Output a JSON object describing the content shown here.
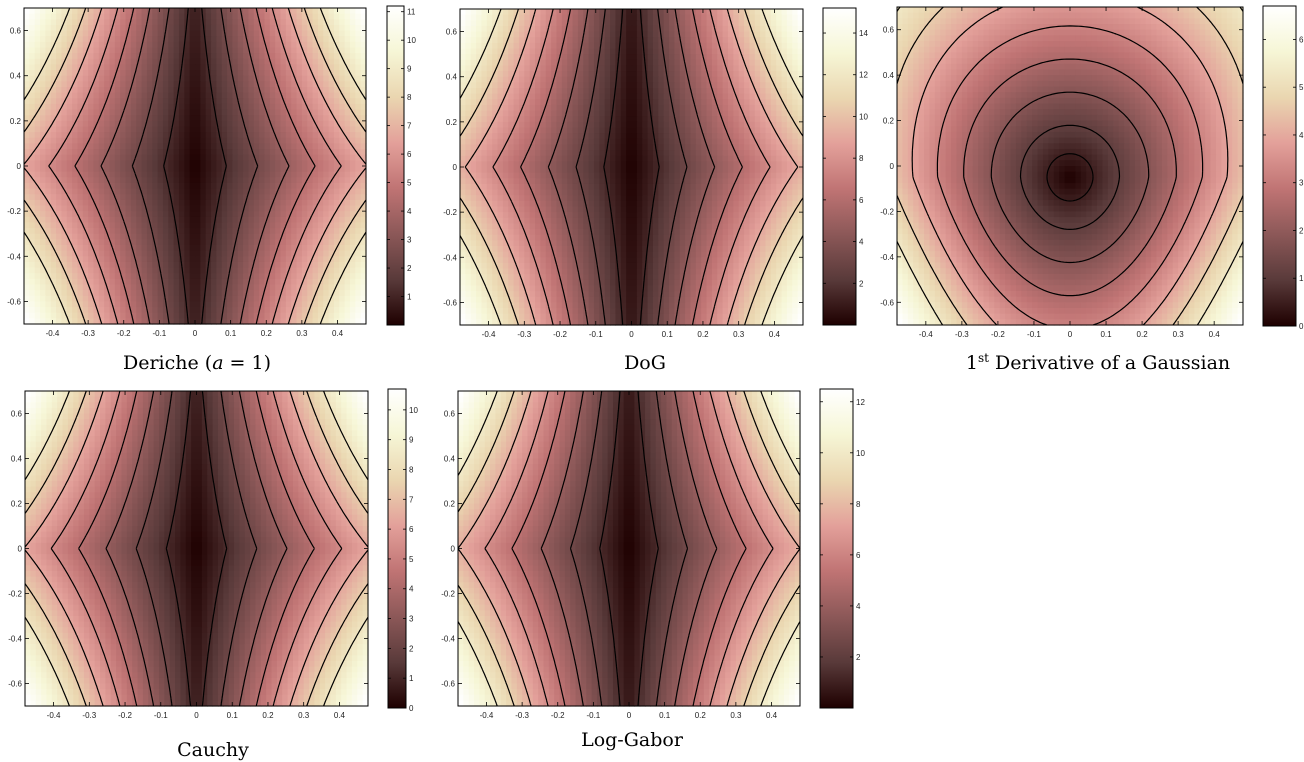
{
  "chart_data": [
    {
      "type": "heatmap",
      "title": "Deriche (a = 1)",
      "title_parts": {
        "main": "Deriche (",
        "var": "a",
        "rest": " = 1)",
        "sup": ""
      },
      "xlim": [
        -0.48,
        0.48
      ],
      "ylim": [
        -0.7,
        0.7
      ],
      "x_ticks": [
        -0.4,
        -0.3,
        -0.2,
        -0.1,
        0,
        0.1,
        0.2,
        0.3,
        0.4
      ],
      "x_tick_labels": [
        "-0.4",
        "-0.3",
        "-0.2",
        "-0.1",
        "0",
        "0.1",
        "0.2",
        "0.3",
        "0.4"
      ],
      "y_ticks": [
        0.6,
        0.4,
        0.2,
        0,
        -0.2,
        -0.4,
        -0.6
      ],
      "y_tick_labels": [
        "0.6",
        "0.4",
        "0.2",
        "0",
        "-0.2",
        "-0.4",
        "-0.6"
      ],
      "colorbar_range": [
        0,
        11.2
      ],
      "colorbar_ticks": [
        1,
        2,
        3,
        4,
        5,
        6,
        7,
        8,
        9,
        10,
        11
      ],
      "colorbar_tick_labels": [
        "1",
        "2",
        "3",
        "4",
        "5",
        "6",
        "7",
        "8",
        "9",
        "10",
        "11"
      ],
      "field_shape": "elongated",
      "field_p": 0.9,
      "field_q": 0.3,
      "field_max": 11.2,
      "contour_levels": [
        1.2,
        2.4,
        3.6,
        4.6,
        5.6,
        6.6,
        7.6,
        8.6
      ],
      "min_location": [
        0,
        0
      ]
    },
    {
      "type": "heatmap",
      "title": "DoG",
      "title_parts": {
        "main": "DoG",
        "var": "",
        "rest": "",
        "sup": ""
      },
      "xlim": [
        -0.48,
        0.48
      ],
      "ylim": [
        -0.7,
        0.7
      ],
      "x_ticks": [
        -0.4,
        -0.3,
        -0.2,
        -0.1,
        0,
        0.1,
        0.2,
        0.3,
        0.4
      ],
      "x_tick_labels": [
        "-0.4",
        "-0.3",
        "-0.2",
        "-0.1",
        "0",
        "0.1",
        "0.2",
        "0.3",
        "0.4"
      ],
      "y_ticks": [
        0.6,
        0.4,
        0.2,
        0,
        -0.2,
        -0.4,
        -0.6
      ],
      "y_tick_labels": [
        "0.6",
        "0.4",
        "0.2",
        "0",
        "-0.2",
        "-0.4",
        "-0.6"
      ],
      "colorbar_range": [
        0,
        15.2
      ],
      "colorbar_ticks": [
        2,
        4,
        6,
        8,
        10,
        12,
        14
      ],
      "colorbar_tick_labels": [
        "2",
        "4",
        "6",
        "8",
        "10",
        "12",
        "14"
      ],
      "field_shape": "elongated",
      "field_p": 0.85,
      "field_q": 0.2,
      "field_max": 15.2,
      "contour_levels": [
        1.5,
        3,
        4.5,
        6,
        7.5,
        9,
        10.5,
        12
      ],
      "min_location": [
        0,
        0
      ]
    },
    {
      "type": "heatmap",
      "title": "1st Derivative of a Gaussian",
      "title_parts": {
        "main": "1",
        "var": "",
        "rest": " Derivative of a Gaussian",
        "sup": "st"
      },
      "xlim": [
        -0.48,
        0.48
      ],
      "ylim": [
        -0.7,
        0.7
      ],
      "x_ticks": [
        -0.4,
        -0.3,
        -0.2,
        -0.1,
        0,
        0.1,
        0.2,
        0.3,
        0.4
      ],
      "x_tick_labels": [
        "-0.4",
        "-0.3",
        "-0.2",
        "-0.1",
        "0",
        "0.1",
        "0.2",
        "0.3",
        "0.4"
      ],
      "y_ticks": [
        0.6,
        0.4,
        0.2,
        0,
        -0.2,
        -0.4,
        -0.6
      ],
      "y_tick_labels": [
        "0.6",
        "0.4",
        "0.2",
        "0",
        "-0.2",
        "-0.4",
        "-0.6"
      ],
      "colorbar_range": [
        0,
        6.7
      ],
      "colorbar_ticks": [
        0,
        1,
        2,
        3,
        4,
        5,
        6
      ],
      "colorbar_tick_labels": [
        "0",
        "1",
        "2",
        "3",
        "4",
        "5",
        "6"
      ],
      "field_shape": "round",
      "field_p": 0.9,
      "field_q": 0.3,
      "field_max": 6.7,
      "contour_levels": [
        0.5,
        1.1,
        1.8,
        2.5,
        3.2,
        3.9,
        4.6,
        5.3
      ],
      "min_location": [
        0,
        0
      ]
    },
    {
      "type": "heatmap",
      "title": "Cauchy",
      "title_parts": {
        "main": "Cauchy",
        "var": "",
        "rest": "",
        "sup": ""
      },
      "xlim": [
        -0.48,
        0.48
      ],
      "ylim": [
        -0.7,
        0.7
      ],
      "x_ticks": [
        -0.4,
        -0.3,
        -0.2,
        -0.1,
        0,
        0.1,
        0.2,
        0.3,
        0.4
      ],
      "x_tick_labels": [
        "-0.4",
        "-0.3",
        "-0.2",
        "-0.1",
        "0",
        "0.1",
        "0.2",
        "0.3",
        "0.4"
      ],
      "y_ticks": [
        0.6,
        0.4,
        0.2,
        0,
        -0.2,
        -0.4,
        -0.6
      ],
      "y_tick_labels": [
        "0.6",
        "0.4",
        "0.2",
        "0",
        "-0.2",
        "-0.4",
        "-0.6"
      ],
      "colorbar_range": [
        0,
        10.7
      ],
      "colorbar_ticks": [
        0,
        1,
        2,
        3,
        4,
        5,
        6,
        7,
        8,
        9,
        10
      ],
      "colorbar_tick_labels": [
        "0",
        "1",
        "2",
        "3",
        "4",
        "5",
        "6",
        "7",
        "8",
        "9",
        "10"
      ],
      "field_shape": "elongated",
      "field_p": 0.9,
      "field_q": 0.3,
      "field_max": 10.7,
      "contour_levels": [
        1.1,
        2.2,
        3.3,
        4.3,
        5.3,
        6.3,
        7.3,
        8.3
      ],
      "min_location": [
        0,
        0
      ]
    },
    {
      "type": "heatmap",
      "title": "Log-Gabor",
      "title_parts": {
        "main": "Log-Gabor",
        "var": "",
        "rest": "",
        "sup": ""
      },
      "xlim": [
        -0.48,
        0.48
      ],
      "ylim": [
        -0.7,
        0.7
      ],
      "x_ticks": [
        -0.4,
        -0.3,
        -0.2,
        -0.1,
        0,
        0.1,
        0.2,
        0.3,
        0.4
      ],
      "x_tick_labels": [
        "-0.4",
        "-0.3",
        "-0.2",
        "-0.1",
        "0",
        "0.1",
        "0.2",
        "0.3",
        "0.4"
      ],
      "y_ticks": [
        0.6,
        0.4,
        0.2,
        0,
        -0.2,
        -0.4,
        -0.6
      ],
      "y_tick_labels": [
        "0.6",
        "0.4",
        "0.2",
        "0",
        "-0.2",
        "-0.4",
        "-0.6"
      ],
      "colorbar_range": [
        0,
        12.5
      ],
      "colorbar_ticks": [
        2,
        4,
        6,
        8,
        10,
        12
      ],
      "colorbar_tick_labels": [
        "2",
        "4",
        "6",
        "8",
        "10",
        "12"
      ],
      "field_shape": "elongated",
      "field_p": 0.85,
      "field_q": 0.22,
      "field_max": 12.5,
      "contour_levels": [
        1.3,
        2.6,
        3.9,
        5.2,
        6.4,
        7.6,
        8.8,
        10
      ],
      "min_location": [
        0,
        0
      ]
    }
  ],
  "colormap": {
    "name": "pink",
    "stops": [
      "#1e0000",
      "#593a3a",
      "#8c5858",
      "#c07474",
      "#e3a09a",
      "#ead6b0",
      "#f6f6d6",
      "#ffffff"
    ]
  },
  "contour_color": "#000000"
}
